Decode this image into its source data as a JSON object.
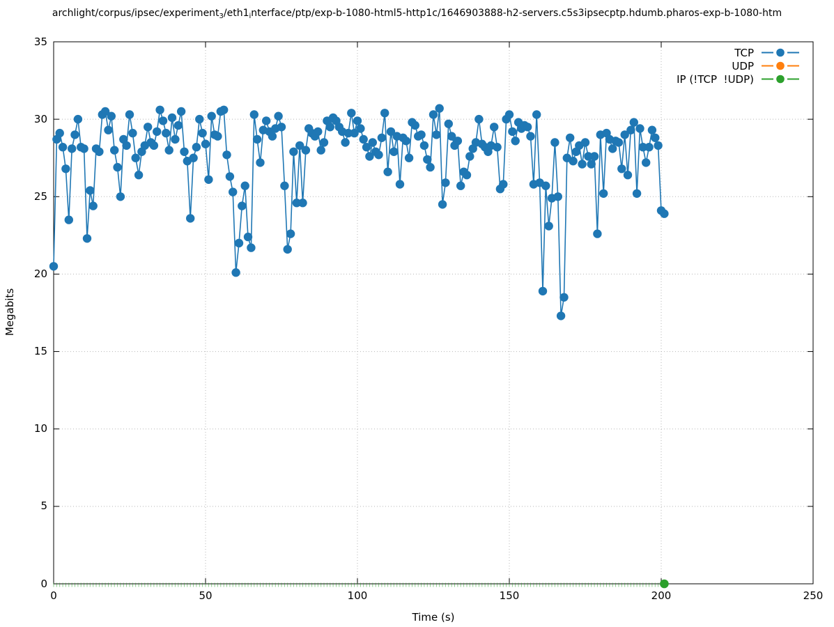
{
  "title": {
    "segments": [
      {
        "t": "archlight/corpus/ipsec/experiment"
      },
      {
        "t": "3",
        "sub": true
      },
      {
        "t": "/eth1"
      },
      {
        "t": "i",
        "sub": true
      },
      {
        "t": "nterface/ptp/exp-b-1080-html5-http1c/1646903888-h2-servers.c5s3ipsecptp.hdumb.pharos-exp-b-1080-htm"
      }
    ]
  },
  "legend": [
    {
      "label": "TCP",
      "color": "#1f77b4"
    },
    {
      "label": "UDP",
      "color": "#ff7f0e"
    },
    {
      "label": "IP (!TCP  !UDP)",
      "color": "#2ca02c"
    }
  ],
  "axes": {
    "xlabel": "Time (s)",
    "ylabel": "Megabits",
    "xticks": [
      0,
      50,
      100,
      150,
      200,
      250
    ],
    "yticks": [
      0,
      5,
      10,
      15,
      20,
      25,
      30,
      35
    ]
  },
  "chart_data": {
    "type": "line",
    "title": "archlight/corpus/ipsec/experiment₃/eth1ᵢnterface/ptp/exp-b-1080-html5-http1c/1646903888-h2-servers.c5s3ipsecptp.hdumb.pharos-exp-b-1080-htm",
    "xlabel": "Time (s)",
    "ylabel": "Megabits",
    "xlim": [
      0,
      250
    ],
    "ylim": [
      0,
      35
    ],
    "xticks": [
      0,
      50,
      100,
      150,
      200,
      250
    ],
    "yticks": [
      0,
      5,
      10,
      15,
      20,
      25,
      30,
      35
    ],
    "grid": "dotted-gray-at-major-ticks",
    "legend_position": "top-right-inside",
    "marker": "filled-circle",
    "series": [
      {
        "name": "TCP",
        "color": "#1f77b4",
        "style": "linespoints",
        "x_start": 0,
        "x_step": 1,
        "y": [
          20.5,
          28.7,
          29.1,
          28.2,
          26.8,
          23.5,
          28.1,
          29.0,
          30.0,
          28.2,
          28.1,
          22.3,
          25.4,
          24.4,
          28.1,
          27.9,
          30.3,
          30.5,
          29.3,
          30.2,
          28.0,
          26.9,
          25.0,
          28.7,
          28.3,
          30.3,
          29.1,
          27.5,
          26.4,
          27.9,
          28.3,
          29.5,
          28.5,
          28.3,
          29.2,
          30.6,
          29.9,
          29.1,
          28.0,
          30.1,
          28.7,
          29.6,
          30.5,
          27.9,
          27.3,
          23.6,
          27.5,
          28.2,
          30.0,
          29.1,
          28.4,
          26.1,
          30.2,
          29.0,
          28.9,
          30.5,
          30.6,
          27.7,
          26.3,
          25.3,
          20.1,
          22.0,
          24.4,
          25.7,
          22.4,
          21.7,
          30.3,
          28.7,
          27.2,
          29.3,
          29.9,
          29.2,
          28.9,
          29.4,
          30.2,
          29.5,
          25.7,
          21.6,
          22.6,
          27.9,
          24.6,
          28.3,
          24.6,
          28.0,
          29.4,
          29.1,
          28.9,
          29.2,
          28.0,
          28.5,
          29.9,
          29.5,
          30.1,
          29.9,
          29.5,
          29.2,
          28.5,
          29.1,
          30.4,
          29.1,
          29.9,
          29.4,
          28.7,
          28.2,
          27.6,
          28.5,
          27.9,
          27.7,
          28.8,
          30.4,
          26.6,
          29.2,
          27.9,
          28.9,
          25.8,
          28.8,
          28.6,
          27.5,
          29.8,
          29.6,
          28.9,
          29.0,
          28.3,
          27.4,
          26.9,
          30.3,
          29.0,
          30.7,
          24.5,
          25.9,
          29.7,
          28.9,
          28.3,
          28.6,
          25.7,
          26.6,
          26.4,
          27.6,
          28.1,
          28.5,
          30.0,
          28.4,
          28.2,
          27.9,
          28.3,
          29.5,
          28.2,
          25.5,
          25.8,
          30.0,
          30.3,
          29.2,
          28.6,
          29.8,
          29.4,
          29.6,
          29.5,
          28.9,
          25.8,
          30.3,
          25.9,
          18.9,
          25.7,
          23.1,
          24.9,
          28.5,
          25.0,
          17.3,
          18.5,
          27.5,
          28.8,
          27.3,
          27.9,
          28.3,
          27.1,
          28.5,
          27.6,
          27.1,
          27.6,
          22.6,
          29.0,
          25.2,
          29.1,
          28.7,
          28.1,
          28.6,
          28.5,
          26.8,
          29.0,
          26.4,
          29.3,
          29.8,
          25.2,
          29.4,
          28.2,
          27.2,
          28.2,
          29.3,
          28.8,
          28.3,
          24.1,
          23.9
        ]
      },
      {
        "name": "UDP",
        "color": "#ff7f0e",
        "style": "linespoints",
        "x": [],
        "y": [],
        "note": "legend entry only; no data points visible in plot"
      },
      {
        "name": "IP (!TCP  !UDP)",
        "color": "#2ca02c",
        "style": "points-at-zero",
        "t_start": 0,
        "t_end": 201,
        "value": 0,
        "marker_point": [
          201,
          0
        ],
        "note": "small green marks at y=0 every 1 s along x-axis from t=0 to t=201, large filled dot at final point"
      }
    ]
  }
}
